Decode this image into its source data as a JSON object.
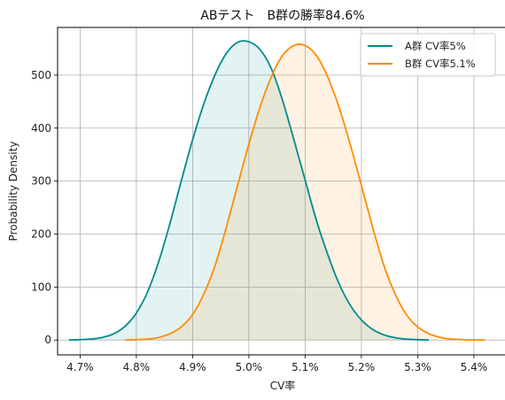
{
  "chart_data": {
    "type": "line",
    "title": "ABテスト　B群の勝率84.6%",
    "xlabel": "CV率",
    "ylabel": "Probability Density",
    "xlim": [
      4.66,
      5.46
    ],
    "ylim": [
      -28,
      590
    ],
    "grid": true,
    "legend_position": "top-right",
    "x_ticks": [
      {
        "value": 4.7,
        "label": "4.7%"
      },
      {
        "value": 4.8,
        "label": "4.8%"
      },
      {
        "value": 4.9,
        "label": "4.9%"
      },
      {
        "value": 5.0,
        "label": "5.0%"
      },
      {
        "value": 5.1,
        "label": "5.1%"
      },
      {
        "value": 5.2,
        "label": "5.2%"
      },
      {
        "value": 5.3,
        "label": "5.3%"
      },
      {
        "value": 5.4,
        "label": "5.4%"
      }
    ],
    "y_ticks": [
      {
        "value": 0,
        "label": "0"
      },
      {
        "value": 100,
        "label": "100"
      },
      {
        "value": 200,
        "label": "200"
      },
      {
        "value": 300,
        "label": "300"
      },
      {
        "value": 400,
        "label": "400"
      },
      {
        "value": 500,
        "label": "500"
      }
    ],
    "series": [
      {
        "name": "A群 CV率5%",
        "color": "#008b8b",
        "fill_color": "#008b8b",
        "x": [
          4.68,
          4.7,
          4.72,
          4.74,
          4.76,
          4.78,
          4.8,
          4.82,
          4.84,
          4.86,
          4.88,
          4.9,
          4.92,
          4.94,
          4.96,
          4.98,
          5.0,
          5.02,
          5.04,
          5.06,
          5.08,
          5.1,
          5.12,
          5.14,
          5.16,
          5.18,
          5.2,
          5.22,
          5.24,
          5.26,
          5.28,
          5.3,
          5.32
        ],
        "y": [
          0.2,
          0.7,
          1.9,
          5,
          12,
          26,
          51,
          91,
          149,
          221,
          301,
          378,
          446,
          501,
          541,
          562,
          563,
          548,
          512,
          452,
          378,
          302,
          226,
          162,
          107,
          66,
          38,
          20,
          9.7,
          4.4,
          1.8,
          0.7,
          0.2
        ]
      },
      {
        "name": "B群 CV率5.1%",
        "color": "#ff8c00",
        "fill_color": "#ff8c00",
        "x": [
          4.78,
          4.8,
          4.82,
          4.84,
          4.86,
          4.88,
          4.9,
          4.92,
          4.94,
          4.96,
          4.98,
          5.0,
          5.02,
          5.04,
          5.06,
          5.08,
          5.1,
          5.12,
          5.14,
          5.16,
          5.18,
          5.2,
          5.22,
          5.24,
          5.26,
          5.28,
          5.3,
          5.32,
          5.34,
          5.36,
          5.38,
          5.4,
          5.42
        ],
        "y": [
          0.2,
          0.7,
          1.9,
          5,
          12,
          25,
          48,
          87,
          141,
          213,
          292,
          370,
          440,
          497,
          537,
          556,
          556,
          537,
          497,
          440,
          370,
          292,
          213,
          141,
          87,
          48,
          25,
          12,
          5,
          1.9,
          0.7,
          0.2,
          0.1
        ]
      }
    ]
  }
}
